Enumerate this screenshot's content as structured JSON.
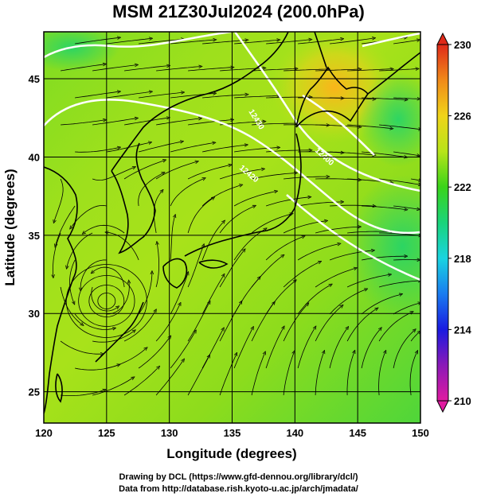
{
  "title": "MSM 21Z30Jul2024 (200.0hPa)",
  "x_axis": {
    "label": "Longitude (degrees)",
    "ticks": [
      "120",
      "125",
      "130",
      "135",
      "140",
      "145",
      "150"
    ]
  },
  "y_axis": {
    "label": "Latitude  (degrees)",
    "ticks": [
      "25",
      "30",
      "35",
      "40",
      "45"
    ]
  },
  "colorbar": {
    "ticks": [
      "210",
      "214",
      "218",
      "222",
      "226",
      "230"
    ],
    "min": 210,
    "max": 230
  },
  "contour_labels": [
    "12430",
    "12420",
    "12400"
  ],
  "credits": {
    "line1": "Drawing by DCL (https://www.gfd-dennou.org/library/dcl/)",
    "line2": "Data from http://database.rish.kyoto-u.ac.jp/arch/jmadata/"
  },
  "map": {
    "lon_range": [
      120,
      150
    ],
    "lat_range": [
      23,
      48
    ],
    "field": "temperature (K) shaded, streamlines and height contours",
    "gyre_center": {
      "lon": 125.0,
      "lat": 30.8
    }
  }
}
